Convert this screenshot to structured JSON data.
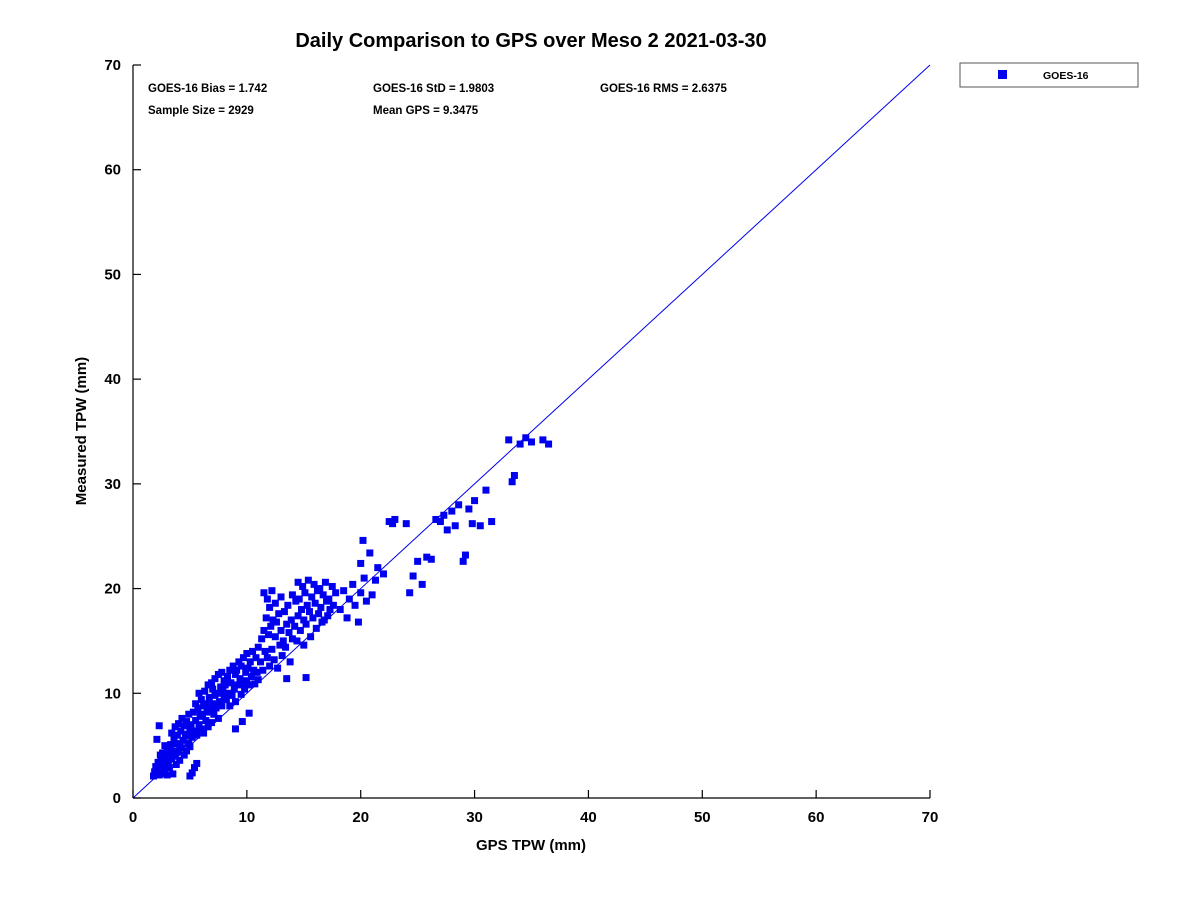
{
  "title": "Daily Comparison to GPS over Meso 2 2021-03-30",
  "annotations": {
    "bias": "GOES-16 Bias = 1.742",
    "std": "GOES-16 StD = 1.9803",
    "rms": "GOES-16 RMS = 2.6375",
    "sample_size": "Sample Size = 2929",
    "mean_gps": "Mean GPS = 9.3475"
  },
  "legend": {
    "label": "GOES-16",
    "marker": "square"
  },
  "colors": {
    "marker": "#0000ee",
    "line": "#0000ee",
    "axis": "#000000",
    "text": "#000000"
  },
  "chart_data": {
    "type": "scatter",
    "title": "Daily Comparison to GPS over Meso 2 2021-03-30",
    "xlabel": "GPS TPW (mm)",
    "ylabel": "Measured TPW (mm)",
    "xlim": [
      0,
      70
    ],
    "ylim": [
      0,
      70
    ],
    "xticks": [
      0,
      10,
      20,
      30,
      40,
      50,
      60,
      70
    ],
    "yticks": [
      0,
      10,
      20,
      30,
      40,
      50,
      60,
      70
    ],
    "grid": false,
    "legend_position": "outside-top-right",
    "series": [
      {
        "name": "GOES-16",
        "marker": "square",
        "color": "#0000ee"
      }
    ],
    "identity_line": {
      "from": [
        0,
        0
      ],
      "to": [
        70,
        70
      ],
      "color": "#0000ee"
    },
    "stats": {
      "bias": 1.742,
      "std": 1.9803,
      "rms": 2.6375,
      "sample_size": 2929,
      "mean_gps": 9.3475
    },
    "points": [
      [
        1.8,
        2.1
      ],
      [
        1.9,
        2.5
      ],
      [
        2.0,
        2.2
      ],
      [
        2.0,
        3.0
      ],
      [
        2.1,
        2.8
      ],
      [
        2.1,
        5.6
      ],
      [
        2.2,
        3.4
      ],
      [
        2.2,
        2.6
      ],
      [
        2.3,
        2.2
      ],
      [
        2.3,
        6.9
      ],
      [
        2.4,
        2.9
      ],
      [
        2.4,
        4.1
      ],
      [
        2.5,
        2.3
      ],
      [
        2.5,
        3.6
      ],
      [
        2.6,
        2.8
      ],
      [
        2.6,
        4.3
      ],
      [
        2.7,
        3.2
      ],
      [
        2.8,
        2.4
      ],
      [
        2.8,
        5.0
      ],
      [
        2.9,
        3.8
      ],
      [
        3.0,
        2.2
      ],
      [
        3.0,
        4.6
      ],
      [
        3.1,
        3.5
      ],
      [
        3.2,
        4.2
      ],
      [
        3.2,
        2.9
      ],
      [
        3.3,
        5.1
      ],
      [
        3.4,
        3.8
      ],
      [
        3.4,
        6.2
      ],
      [
        3.5,
        4.5
      ],
      [
        3.5,
        2.3
      ],
      [
        3.6,
        5.6
      ],
      [
        3.7,
        4.0
      ],
      [
        3.7,
        6.8
      ],
      [
        3.8,
        3.2
      ],
      [
        3.8,
        5.2
      ],
      [
        3.9,
        6.0
      ],
      [
        4.0,
        4.4
      ],
      [
        4.0,
        7.1
      ],
      [
        4.1,
        5.0
      ],
      [
        4.1,
        3.6
      ],
      [
        4.2,
        6.4
      ],
      [
        4.3,
        4.8
      ],
      [
        4.3,
        7.6
      ],
      [
        4.4,
        5.5
      ],
      [
        4.5,
        4.1
      ],
      [
        4.5,
        6.9
      ],
      [
        4.6,
        5.9
      ],
      [
        4.7,
        7.3
      ],
      [
        4.7,
        4.5
      ],
      [
        4.8,
        6.1
      ],
      [
        4.9,
        5.2
      ],
      [
        4.9,
        8.0
      ],
      [
        5.0,
        6.6
      ],
      [
        5.0,
        4.9
      ],
      [
        5.0,
        2.1
      ],
      [
        5.2,
        2.4
      ],
      [
        5.4,
        2.9
      ],
      [
        5.6,
        3.3
      ],
      [
        5.1,
        7.0
      ],
      [
        5.2,
        5.8
      ],
      [
        5.3,
        8.2
      ],
      [
        5.4,
        6.4
      ],
      [
        5.5,
        9.0
      ],
      [
        5.5,
        7.4
      ],
      [
        5.6,
        6.0
      ],
      [
        5.7,
        8.6
      ],
      [
        5.8,
        7.0
      ],
      [
        5.8,
        10.0
      ],
      [
        5.9,
        8.0
      ],
      [
        6.0,
        6.6
      ],
      [
        6.0,
        9.4
      ],
      [
        6.1,
        7.8
      ],
      [
        6.2,
        8.8
      ],
      [
        6.2,
        6.2
      ],
      [
        6.3,
        10.2
      ],
      [
        6.4,
        7.4
      ],
      [
        6.4,
        9.0
      ],
      [
        6.5,
        8.2
      ],
      [
        6.6,
        10.8
      ],
      [
        6.6,
        6.8
      ],
      [
        6.7,
        9.6
      ],
      [
        6.8,
        8.4
      ],
      [
        6.9,
        11.0
      ],
      [
        6.9,
        7.2
      ],
      [
        7.0,
        9.0
      ],
      [
        7.0,
        10.4
      ],
      [
        7.1,
        8.0
      ],
      [
        7.2,
        11.4
      ],
      [
        7.2,
        9.8
      ],
      [
        7.3,
        8.6
      ],
      [
        7.4,
        10.0
      ],
      [
        7.5,
        11.8
      ],
      [
        7.5,
        7.6
      ],
      [
        7.6,
        9.2
      ],
      [
        7.7,
        10.6
      ],
      [
        7.8,
        8.8
      ],
      [
        7.8,
        12.0
      ],
      [
        7.9,
        10.2
      ],
      [
        8.0,
        9.6
      ],
      [
        8.0,
        11.2
      ],
      [
        8.1,
        10.8
      ],
      [
        8.2,
        9.4
      ],
      [
        8.3,
        11.6
      ],
      [
        8.4,
        10.0
      ],
      [
        8.5,
        12.2
      ],
      [
        8.5,
        8.8
      ],
      [
        8.6,
        11.0
      ],
      [
        8.7,
        9.8
      ],
      [
        8.8,
        12.6
      ],
      [
        8.9,
        10.4
      ],
      [
        9.0,
        11.8
      ],
      [
        9.0,
        9.2
      ],
      [
        9.1,
        12.2
      ],
      [
        9.2,
        10.8
      ],
      [
        9.3,
        13.0
      ],
      [
        9.4,
        11.4
      ],
      [
        9.5,
        9.9
      ],
      [
        9.5,
        12.6
      ],
      [
        9.6,
        11.0
      ],
      [
        9.7,
        13.4
      ],
      [
        9.8,
        10.4
      ],
      [
        9.9,
        12.0
      ],
      [
        10.0,
        11.2
      ],
      [
        10.0,
        13.8
      ],
      [
        10.1,
        12.4
      ],
      [
        10.2,
        10.8
      ],
      [
        10.3,
        13.0
      ],
      [
        10.4,
        11.6
      ],
      [
        10.5,
        14.0
      ],
      [
        10.6,
        12.2
      ],
      [
        10.7,
        10.9
      ],
      [
        10.8,
        13.4
      ],
      [
        10.9,
        12.0
      ],
      [
        11.0,
        14.4
      ],
      [
        11.0,
        11.3
      ],
      [
        9.0,
        6.6
      ],
      [
        9.6,
        7.3
      ],
      [
        10.2,
        8.1
      ],
      [
        11.2,
        13.0
      ],
      [
        11.3,
        15.2
      ],
      [
        11.4,
        12.2
      ],
      [
        11.5,
        16.0
      ],
      [
        11.5,
        19.6
      ],
      [
        11.6,
        14.0
      ],
      [
        11.7,
        17.2
      ],
      [
        11.8,
        13.4
      ],
      [
        11.8,
        19.0
      ],
      [
        11.9,
        15.6
      ],
      [
        12.0,
        12.6
      ],
      [
        12.0,
        18.2
      ],
      [
        12.1,
        16.4
      ],
      [
        12.2,
        14.2
      ],
      [
        12.2,
        19.8
      ],
      [
        12.3,
        17.0
      ],
      [
        12.4,
        13.2
      ],
      [
        12.5,
        15.4
      ],
      [
        12.5,
        18.6
      ],
      [
        12.6,
        16.8
      ],
      [
        12.7,
        12.4
      ],
      [
        12.8,
        17.6
      ],
      [
        12.9,
        14.6
      ],
      [
        13.0,
        16.0
      ],
      [
        13.0,
        19.2
      ],
      [
        13.1,
        13.6
      ],
      [
        13.2,
        15.0
      ],
      [
        13.3,
        17.8
      ],
      [
        13.4,
        14.4
      ],
      [
        13.5,
        16.6
      ],
      [
        13.5,
        11.4
      ],
      [
        13.6,
        18.4
      ],
      [
        13.7,
        15.8
      ],
      [
        13.8,
        13.0
      ],
      [
        13.9,
        17.0
      ],
      [
        14.0,
        15.2
      ],
      [
        14.0,
        19.4
      ],
      [
        14.2,
        16.4
      ],
      [
        14.3,
        18.8
      ],
      [
        14.4,
        15.0
      ],
      [
        14.5,
        17.4
      ],
      [
        14.5,
        20.6
      ],
      [
        14.6,
        19.0
      ],
      [
        14.7,
        16.0
      ],
      [
        14.8,
        18.0
      ],
      [
        14.9,
        20.2
      ],
      [
        15.0,
        17.0
      ],
      [
        15.0,
        14.6
      ],
      [
        15.1,
        19.6
      ],
      [
        15.2,
        16.6
      ],
      [
        15.2,
        11.5
      ],
      [
        15.3,
        18.4
      ],
      [
        15.4,
        20.8
      ],
      [
        15.5,
        17.8
      ],
      [
        15.6,
        15.4
      ],
      [
        15.7,
        19.2
      ],
      [
        15.8,
        17.2
      ],
      [
        15.9,
        20.4
      ],
      [
        16.0,
        18.6
      ],
      [
        16.1,
        16.2
      ],
      [
        16.2,
        19.8
      ],
      [
        16.3,
        17.6
      ],
      [
        16.4,
        20.0
      ],
      [
        16.5,
        18.2
      ],
      [
        16.6,
        16.8
      ],
      [
        16.7,
        19.4
      ],
      [
        16.8,
        17.0
      ],
      [
        16.9,
        20.6
      ],
      [
        17.0,
        18.8
      ],
      [
        17.1,
        17.4
      ],
      [
        17.2,
        19.0
      ],
      [
        17.3,
        18.0
      ],
      [
        17.5,
        20.2
      ],
      [
        17.6,
        18.4
      ],
      [
        17.8,
        19.6
      ],
      [
        18.2,
        18.0
      ],
      [
        18.5,
        19.8
      ],
      [
        18.8,
        17.2
      ],
      [
        19.0,
        19.0
      ],
      [
        19.3,
        20.4
      ],
      [
        19.5,
        18.4
      ],
      [
        19.8,
        16.8
      ],
      [
        20.0,
        19.6
      ],
      [
        20.0,
        22.4
      ],
      [
        20.2,
        24.6
      ],
      [
        20.3,
        21.0
      ],
      [
        20.5,
        18.8
      ],
      [
        20.8,
        23.4
      ],
      [
        21.0,
        19.4
      ],
      [
        21.3,
        20.8
      ],
      [
        21.5,
        22.0
      ],
      [
        22.0,
        21.4
      ],
      [
        22.5,
        26.4
      ],
      [
        22.8,
        26.2
      ],
      [
        23.0,
        26.6
      ],
      [
        24.0,
        26.2
      ],
      [
        24.3,
        19.6
      ],
      [
        24.6,
        21.2
      ],
      [
        25.0,
        22.6
      ],
      [
        25.4,
        20.4
      ],
      [
        25.8,
        23.0
      ],
      [
        26.2,
        22.8
      ],
      [
        26.6,
        26.6
      ],
      [
        27.0,
        26.4
      ],
      [
        27.3,
        27.0
      ],
      [
        27.6,
        25.6
      ],
      [
        28.0,
        27.4
      ],
      [
        28.3,
        26.0
      ],
      [
        28.6,
        28.0
      ],
      [
        29.0,
        22.6
      ],
      [
        29.2,
        23.2
      ],
      [
        29.5,
        27.6
      ],
      [
        29.8,
        26.2
      ],
      [
        30.0,
        28.4
      ],
      [
        30.5,
        26.0
      ],
      [
        31.0,
        29.4
      ],
      [
        31.5,
        26.4
      ],
      [
        33.0,
        34.2
      ],
      [
        33.3,
        30.2
      ],
      [
        33.5,
        30.8
      ],
      [
        34.0,
        33.8
      ],
      [
        34.5,
        34.4
      ],
      [
        35.0,
        34.0
      ],
      [
        36.0,
        34.2
      ],
      [
        36.5,
        33.8
      ]
    ]
  }
}
